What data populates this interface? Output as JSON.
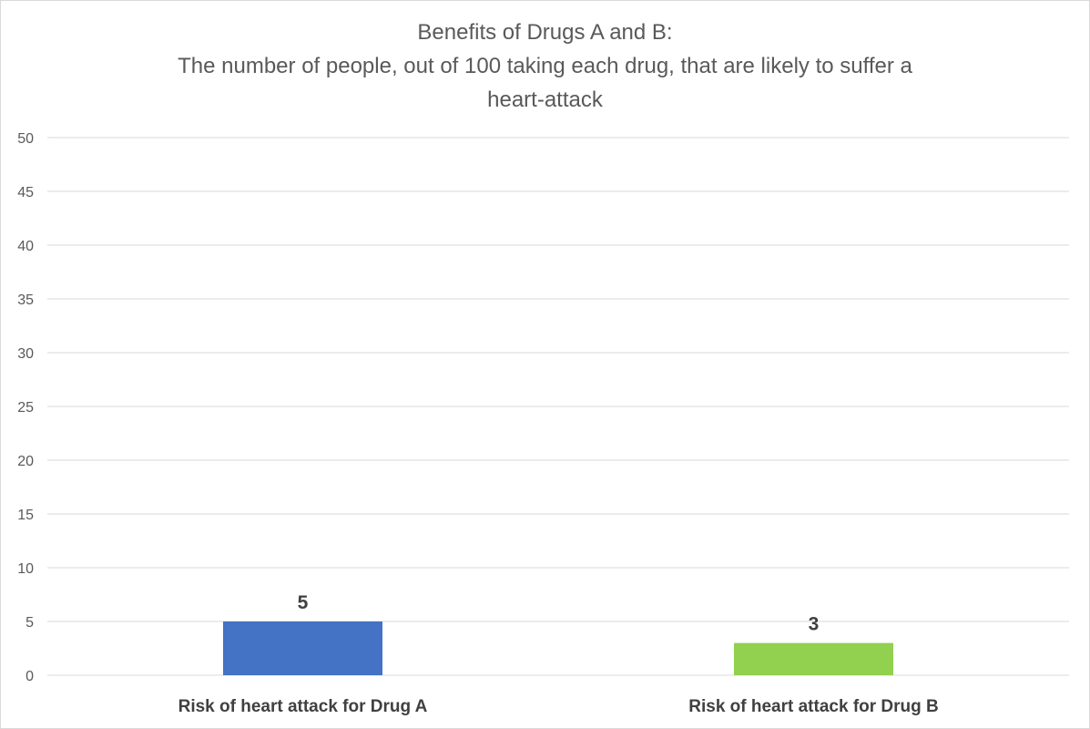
{
  "chart_data": {
    "type": "bar",
    "title_lines": [
      "Benefits of Drugs A and B:",
      "The number of people, out of 100 taking each drug, that are likely to suffer a",
      "heart-attack"
    ],
    "categories": [
      "Risk of heart attack for Drug A",
      "Risk of heart attack for Drug B"
    ],
    "values": [
      5,
      3
    ],
    "data_labels": [
      "5",
      "3"
    ],
    "bar_colors": [
      "#4472c4",
      "#92d050"
    ],
    "ylim": [
      0,
      50
    ],
    "yticks": [
      0,
      5,
      10,
      15,
      20,
      25,
      30,
      35,
      40,
      45,
      50
    ],
    "grid": true,
    "legend": "none",
    "xlabel": "",
    "ylabel": ""
  }
}
